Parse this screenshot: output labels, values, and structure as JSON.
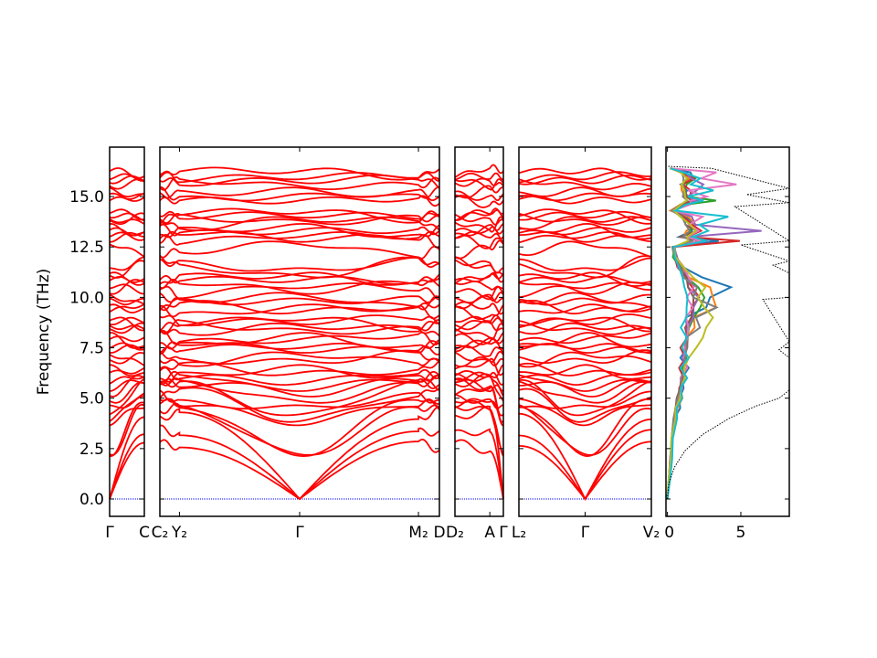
{
  "chart_data": {
    "type": "line",
    "title": "",
    "ylabel": "Frequency (THz)",
    "ylim": [
      -0.86,
      17.45
    ],
    "yticks": [
      "0.0",
      "2.5",
      "5.0",
      "7.5",
      "10.0",
      "12.5",
      "15.0"
    ],
    "ytick_values": [
      0,
      2.5,
      5,
      7.5,
      10,
      12.5,
      15
    ],
    "band_color": "#ff0000",
    "zero_line_color": "#0000ff",
    "panels": [
      {
        "labels": [
          "Γ",
          "C"
        ],
        "nodes": [
          "G",
          "Z"
        ]
      },
      {
        "labels": [
          "C₂",
          "Y₂",
          "Γ",
          "M₂",
          "D"
        ],
        "nodes": [
          "Z",
          "Z",
          "G",
          "Z",
          "Z"
        ],
        "node_pos": [
          0,
          0.07,
          0.5,
          0.925,
          1
        ]
      },
      {
        "labels": [
          "D₂",
          "A",
          "Γ"
        ],
        "nodes": [
          "Z",
          "Z",
          "G"
        ],
        "node_pos": [
          0,
          0.72,
          1
        ]
      },
      {
        "labels": [
          "L₂",
          "Γ",
          "V₂"
        ],
        "nodes": [
          "Z",
          "G",
          "Z"
        ],
        "node_pos": [
          0,
          0.5,
          1
        ]
      }
    ],
    "bands_gamma_vs_boundary_THz": [
      [
        0,
        2.6
      ],
      [
        0,
        3.4
      ],
      [
        0,
        4.2
      ],
      [
        2.2,
        4.4
      ],
      [
        2.25,
        4.8
      ],
      [
        3.8,
        4.9
      ],
      [
        3.9,
        5.3
      ],
      [
        4.1,
        5.6
      ],
      [
        4.5,
        5.0
      ],
      [
        4.8,
        5.9
      ],
      [
        5.2,
        6.0
      ],
      [
        5.5,
        5.7
      ],
      [
        5.8,
        6.3
      ],
      [
        6.2,
        6.6
      ],
      [
        6.5,
        5.9
      ],
      [
        6.8,
        7.0
      ],
      [
        7.2,
        6.9
      ],
      [
        7.4,
        7.6
      ],
      [
        7.6,
        7.3
      ],
      [
        7.9,
        8.0
      ],
      [
        8.1,
        7.7
      ],
      [
        8.3,
        8.5
      ],
      [
        8.6,
        8.2
      ],
      [
        8.8,
        9.0
      ],
      [
        9.0,
        8.7
      ],
      [
        9.3,
        9.5
      ],
      [
        9.5,
        9.2
      ],
      [
        9.8,
        10.0
      ],
      [
        10.1,
        9.7
      ],
      [
        10.3,
        10.6
      ],
      [
        10.6,
        10.3
      ],
      [
        10.9,
        11.0
      ],
      [
        11.1,
        10.8
      ],
      [
        11.3,
        11.6
      ],
      [
        11.0,
        11.8
      ],
      [
        12.7,
        12.3
      ],
      [
        12.9,
        13.0
      ],
      [
        13.1,
        12.8
      ],
      [
        13.3,
        13.4
      ],
      [
        13.5,
        13.2
      ],
      [
        13.7,
        13.8
      ],
      [
        13.9,
        13.6
      ],
      [
        14.1,
        14.2
      ],
      [
        14.3,
        14.0
      ],
      [
        14.8,
        14.7
      ],
      [
        15.0,
        15.1
      ],
      [
        15.3,
        15.2
      ],
      [
        15.5,
        15.6
      ],
      [
        15.8,
        15.7
      ],
      [
        16.0,
        16.1
      ],
      [
        16.3,
        16.2
      ]
    ],
    "dos": {
      "xlim": [
        -0.1,
        8.3
      ],
      "xticks": [
        "0",
        "5"
      ],
      "xtick_values": [
        0,
        5
      ],
      "total_dos": [
        [
          0,
          0
        ],
        [
          0.8,
          0.1
        ],
        [
          1.6,
          0.5
        ],
        [
          2.4,
          1.2
        ],
        [
          3.2,
          2.4
        ],
        [
          4.0,
          4.2
        ],
        [
          4.6,
          6.0
        ],
        [
          5.0,
          7.6
        ],
        [
          5.4,
          8.3
        ],
        [
          7.0,
          8.3
        ],
        [
          7.4,
          7.6
        ],
        [
          7.8,
          8.3
        ],
        [
          9.9,
          6.5
        ],
        [
          10.0,
          8.3
        ],
        [
          11.2,
          8.3
        ],
        [
          11.6,
          7.2
        ],
        [
          11.8,
          8.3
        ],
        [
          12.6,
          5.0
        ],
        [
          12.8,
          8.3
        ],
        [
          14.5,
          4.6
        ],
        [
          14.7,
          8.3
        ],
        [
          15.1,
          5.4
        ],
        [
          15.4,
          8.3
        ],
        [
          16.4,
          3.0
        ],
        [
          16.5,
          0
        ]
      ],
      "pdos_colors": [
        "#1f77b4",
        "#ff7f0e",
        "#2ca02c",
        "#d62728",
        "#9467bd",
        "#8c564b",
        "#e377c2",
        "#7f7f7f",
        "#bcbd22",
        "#17becf"
      ],
      "pdos_freq": [
        0,
        1,
        2,
        3,
        4,
        4.5,
        5,
        5.5,
        6,
        6.5,
        7,
        7.5,
        8,
        8.5,
        9,
        9.5,
        10,
        10.5,
        11,
        11.5,
        12,
        12.5,
        12.8,
        13,
        13.3,
        13.6,
        14,
        14.3,
        14.6,
        14.8,
        15,
        15.3,
        15.6,
        15.9,
        16.2,
        16.4
      ],
      "pdos_values": [
        [
          0,
          0.1,
          0.2,
          0.3,
          0.5,
          0.8,
          0.9,
          1.0,
          1.1,
          1.3,
          1.0,
          1.2,
          1.5,
          1.2,
          1.4,
          2.4,
          3.2,
          4.0,
          2.5,
          1.0,
          0.6,
          0.4,
          3.5,
          0.8,
          1.6,
          2.0,
          1.2,
          0.3,
          0.8,
          2.2,
          1.0,
          1.5,
          0.8,
          2.0,
          1.4,
          0.2
        ],
        [
          0,
          0.1,
          0.2,
          0.3,
          0.6,
          0.7,
          1.0,
          0.9,
          1.2,
          1.0,
          1.3,
          1.1,
          1.4,
          1.7,
          2.0,
          3.0,
          3.5,
          2.6,
          1.6,
          0.9,
          0.5,
          0.3,
          2.9,
          1.0,
          1.4,
          1.8,
          1.5,
          0.2,
          0.9,
          1.8,
          1.2,
          1.0,
          0.9,
          1.6,
          1.0,
          0.2
        ],
        [
          0,
          0.1,
          0.2,
          0.4,
          0.5,
          0.6,
          0.8,
          1.0,
          0.9,
          1.1,
          1.2,
          1.0,
          1.3,
          1.5,
          1.8,
          2.2,
          2.6,
          2.0,
          1.4,
          0.8,
          0.4,
          0.5,
          3.0,
          1.2,
          1.8,
          1.4,
          1.0,
          0.4,
          1.4,
          3.0,
          1.5,
          1.1,
          1.4,
          1.8,
          1.2,
          0.2
        ],
        [
          0,
          0.1,
          0.2,
          0.3,
          0.4,
          0.6,
          0.7,
          0.9,
          1.0,
          0.9,
          1.1,
          1.0,
          1.2,
          1.4,
          1.5,
          1.8,
          2.0,
          1.8,
          1.2,
          0.7,
          0.5,
          0.4,
          5.0,
          1.3,
          2.4,
          1.6,
          1.2,
          0.3,
          1.0,
          1.6,
          1.8,
          1.4,
          1.2,
          1.6,
          1.0,
          0.2
        ],
        [
          0,
          0.1,
          0.2,
          0.3,
          0.5,
          0.6,
          0.8,
          0.9,
          1.1,
          1.2,
          1.0,
          1.3,
          1.2,
          1.5,
          1.6,
          2.0,
          1.9,
          1.6,
          1.3,
          0.8,
          0.6,
          0.5,
          2.5,
          1.5,
          6.0,
          2.0,
          1.6,
          0.4,
          1.2,
          2.0,
          1.4,
          1.9,
          2.6,
          1.5,
          1.3,
          0.2
        ],
        [
          0,
          0.1,
          0.2,
          0.3,
          0.5,
          0.5,
          0.7,
          0.8,
          1.0,
          1.1,
          1.2,
          1.3,
          1.4,
          1.2,
          1.6,
          1.8,
          1.7,
          1.5,
          1.2,
          0.9,
          0.5,
          0.4,
          2.0,
          1.0,
          1.8,
          1.4,
          1.0,
          0.4,
          1.1,
          1.8,
          1.2,
          1.3,
          1.0,
          1.4,
          0.9,
          0.2
        ],
        [
          0,
          0.1,
          0.2,
          0.3,
          0.5,
          0.6,
          0.8,
          0.9,
          1.0,
          1.2,
          1.3,
          1.1,
          1.5,
          1.3,
          1.4,
          1.6,
          1.4,
          1.7,
          1.5,
          1.1,
          0.6,
          0.5,
          2.2,
          1.4,
          2.0,
          1.6,
          2.2,
          0.4,
          1.4,
          1.8,
          2.4,
          1.6,
          4.2,
          2.6,
          3.0,
          0.2
        ],
        [
          0,
          0.1,
          0.2,
          0.3,
          0.4,
          0.6,
          0.7,
          0.9,
          1.0,
          1.1,
          1.3,
          1.2,
          1.4,
          2.0,
          2.2,
          3.0,
          2.0,
          1.8,
          1.2,
          0.9,
          0.7,
          0.4,
          1.8,
          1.0,
          1.6,
          1.2,
          1.0,
          0.3,
          0.9,
          1.4,
          1.0,
          1.2,
          1.0,
          1.2,
          0.9,
          0.2
        ],
        [
          0,
          0.1,
          0.2,
          0.3,
          0.5,
          0.6,
          0.8,
          1.0,
          1.1,
          1.2,
          1.4,
          2.0,
          2.4,
          2.6,
          3.2,
          2.4,
          2.2,
          2.4,
          1.9,
          1.0,
          0.6,
          0.4,
          1.6,
          1.2,
          2.2,
          1.4,
          1.0,
          0.4,
          1.0,
          1.2,
          1.3,
          1.1,
          1.0,
          1.3,
          0.9,
          0.2
        ],
        [
          0,
          0.2,
          0.3,
          0.4,
          0.6,
          0.7,
          0.9,
          1.0,
          1.2,
          1.0,
          1.3,
          1.1,
          1.2,
          1.0,
          1.2,
          1.4,
          1.3,
          1.2,
          1.0,
          0.8,
          0.5,
          0.4,
          2.8,
          1.6,
          3.0,
          2.0,
          4.6,
          0.5,
          1.4,
          2.2,
          1.6,
          2.8,
          1.8,
          2.0,
          1.2,
          0.2
        ]
      ]
    }
  }
}
